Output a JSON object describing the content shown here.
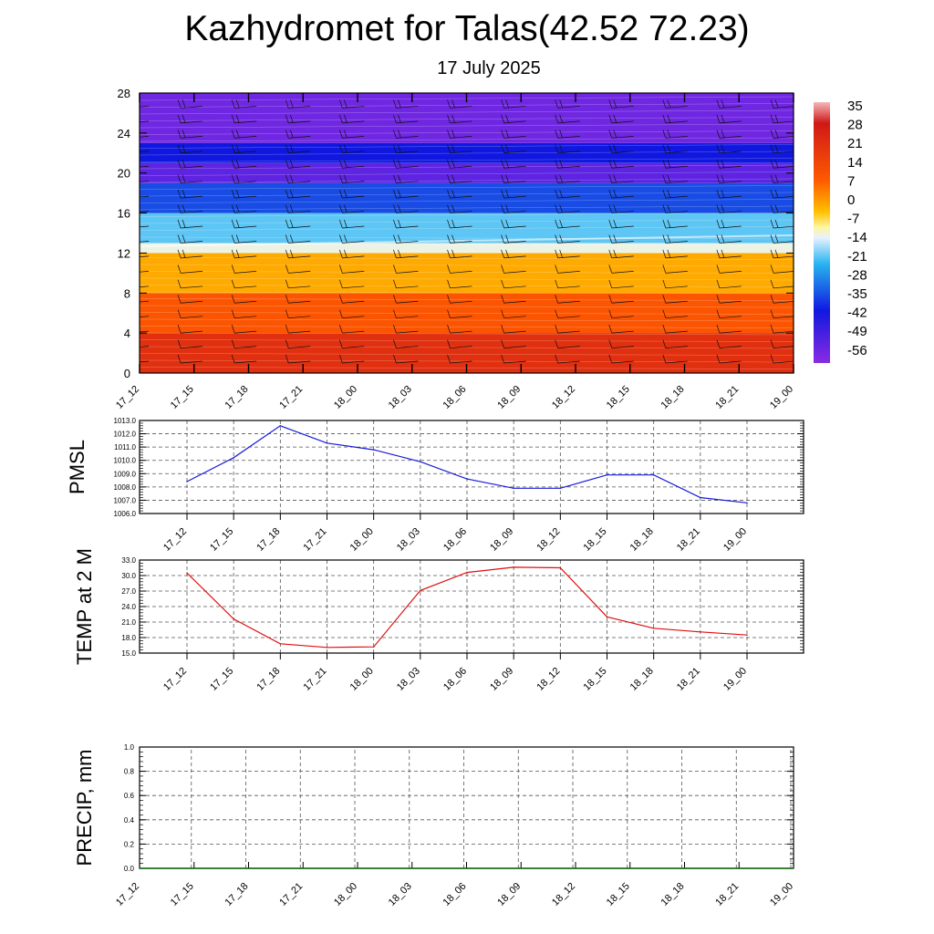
{
  "page": {
    "title": "Kazhydromet for Talas(42.52 72.23)",
    "subtitle": "17 July 2025"
  },
  "colors": {
    "pmsl_line": "#1a1adc",
    "temp_line": "#e01010",
    "precip_line": "#0a6a0a",
    "grid": "#555555"
  },
  "chart_data": [
    {
      "type": "heatmap",
      "title": "",
      "xlabel": "",
      "ylabel": "",
      "x_ticks": [
        "17_12",
        "17_15",
        "17_18",
        "17_21",
        "18_00",
        "18_03",
        "18_06",
        "18_09",
        "18_12",
        "18_15",
        "18_18",
        "18_21",
        "19_00"
      ],
      "y_ticks": [
        0,
        4,
        8,
        12,
        16,
        20,
        24,
        28
      ],
      "ylim": [
        0,
        28
      ],
      "colorbar_labels": [
        "35",
        "28",
        "21",
        "14",
        "7",
        "0",
        "-7",
        "-14",
        "-21",
        "-28",
        "-35",
        "-42",
        "-49",
        "-56"
      ],
      "colorbar_range": [
        -63,
        42
      ],
      "overlay": "wind barbs",
      "bands": [
        {
          "from": 0,
          "to": 4,
          "value": 30
        },
        {
          "from": 4,
          "to": 8,
          "value": 22
        },
        {
          "from": 8,
          "to": 12,
          "value": 10
        },
        {
          "from": 12,
          "to": 13,
          "value": -12
        },
        {
          "from": 13,
          "to": 16,
          "value": -24
        },
        {
          "from": 16,
          "to": 19,
          "value": -42
        },
        {
          "from": 19,
          "to": 21,
          "value": -58
        },
        {
          "from": 21,
          "to": 23,
          "value": -49
        },
        {
          "from": 23,
          "to": 28,
          "value": -60
        }
      ]
    },
    {
      "type": "line",
      "title": "",
      "xlabel": "",
      "ylabel": "PMSL",
      "categories": [
        "17_12",
        "17_15",
        "17_18",
        "17_21",
        "18_00",
        "18_03",
        "18_06",
        "18_09",
        "18_12",
        "18_15",
        "18_18",
        "18_21",
        "19_00"
      ],
      "ylim": [
        1006.0,
        1013.0
      ],
      "y_ticks": [
        "1006.0",
        "1007.0",
        "1008.0",
        "1009.0",
        "1010.0",
        "1011.0",
        "1012.0",
        "1013.0"
      ],
      "series": [
        {
          "values": [
            1008.4,
            1010.2,
            1012.6,
            1011.3,
            1010.8,
            1009.9,
            1008.6,
            1007.9,
            1007.9,
            1008.9,
            1008.9,
            1007.2,
            1006.8
          ]
        }
      ],
      "grid": true
    },
    {
      "type": "line",
      "title": "",
      "xlabel": "",
      "ylabel": "TEMP at 2 M",
      "categories": [
        "17_12",
        "17_15",
        "17_18",
        "17_21",
        "18_00",
        "18_03",
        "18_06",
        "18_09",
        "18_12",
        "18_15",
        "18_18",
        "18_21",
        "19_00"
      ],
      "ylim": [
        15.0,
        33.0
      ],
      "y_ticks": [
        "15.0",
        "18.0",
        "21.0",
        "24.0",
        "27.0",
        "30.0",
        "33.0"
      ],
      "series": [
        {
          "values": [
            30.5,
            21.6,
            16.8,
            16.1,
            16.2,
            27.1,
            30.6,
            31.6,
            31.5,
            22.0,
            19.8,
            19.1,
            18.5
          ]
        }
      ],
      "grid": true
    },
    {
      "type": "line",
      "title": "",
      "xlabel": "",
      "ylabel": "PRECIP, mm",
      "categories": [
        "17_12",
        "17_15",
        "17_18",
        "17_21",
        "18_00",
        "18_03",
        "18_06",
        "18_09",
        "18_12",
        "18_15",
        "18_18",
        "18_21",
        "19_00"
      ],
      "ylim": [
        0.0,
        1.0
      ],
      "y_ticks": [
        "0.0",
        "0.2",
        "0.4",
        "0.6",
        "0.8",
        "1.0"
      ],
      "series": [
        {
          "values": [
            0,
            0,
            0,
            0,
            0,
            0,
            0,
            0,
            0,
            0,
            0,
            0,
            0
          ]
        }
      ],
      "grid": true
    }
  ]
}
